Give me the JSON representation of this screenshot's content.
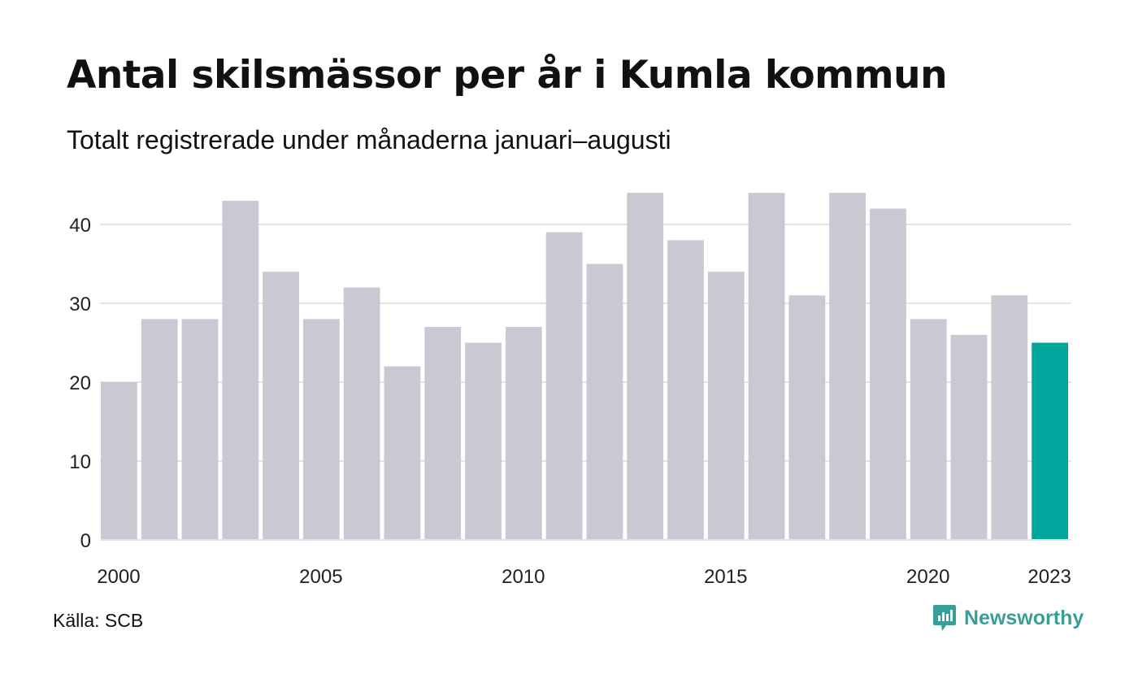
{
  "title": "Antal skilsmässor per år i Kumla kommun",
  "subtitle": "Totalt registrerade under månaderna januari–augusti",
  "source": "Källa: SCB",
  "brand": {
    "name": "Newsworthy",
    "icon": "newsworthy-logo-icon"
  },
  "colors": {
    "bar": "#c9c8d3",
    "highlight": "#00a69c",
    "grid": "#e4e4e4",
    "brand": "#3a9e98"
  },
  "chart_data": {
    "type": "bar",
    "categories": [
      "2000",
      "2001",
      "2002",
      "2003",
      "2004",
      "2005",
      "2006",
      "2007",
      "2008",
      "2009",
      "2010",
      "2011",
      "2012",
      "2013",
      "2014",
      "2015",
      "2016",
      "2017",
      "2018",
      "2019",
      "2020",
      "2021",
      "2022",
      "2023"
    ],
    "values": [
      20,
      28,
      28,
      43,
      34,
      28,
      32,
      22,
      27,
      25,
      27,
      39,
      35,
      44,
      38,
      34,
      44,
      31,
      44,
      42,
      28,
      26,
      31,
      25
    ],
    "highlight_index": 23,
    "x_tick_labels": [
      "2000",
      "2005",
      "2010",
      "2015",
      "2020",
      "2023"
    ],
    "y_ticks": [
      0,
      10,
      20,
      30,
      40
    ],
    "ylim": [
      0,
      44
    ],
    "xlabel": "",
    "ylabel": "",
    "grid": true,
    "legend": "none"
  }
}
